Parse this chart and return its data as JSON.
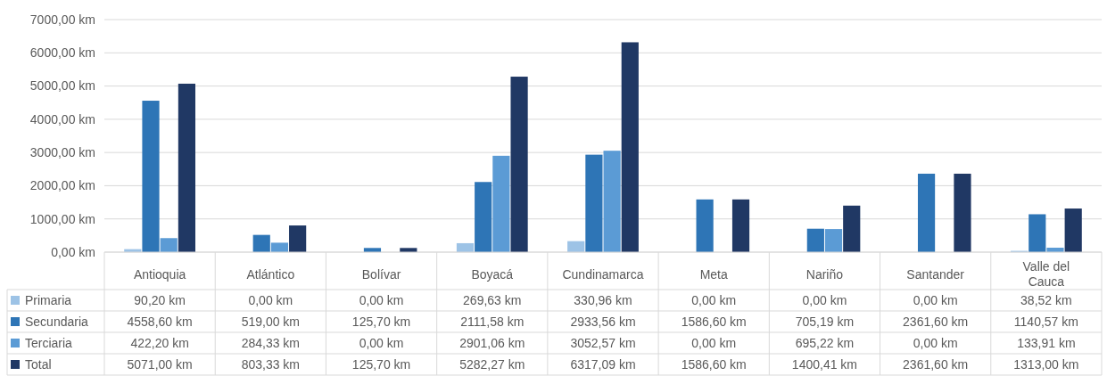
{
  "chart_data": {
    "type": "bar",
    "categories": [
      "Antioquia",
      "Atlántico",
      "Bolívar",
      "Boyacá",
      "Cundinamarca",
      "Meta",
      "Nariño",
      "Santander",
      "Valle del Cauca"
    ],
    "series": [
      {
        "name": "Primaria",
        "color": "#9dc3e6",
        "values": [
          90.2,
          0,
          0,
          269.63,
          330.96,
          0,
          0,
          0,
          38.52
        ],
        "value_labels": [
          "90,20 km",
          "0,00 km",
          "0,00 km",
          "269,63 km",
          "330,96 km",
          "0,00 km",
          "0,00 km",
          "0,00 km",
          "38,52 km"
        ]
      },
      {
        "name": "Secundaria",
        "color": "#2e75b6",
        "values": [
          4558.6,
          519,
          125.7,
          2111.58,
          2933.56,
          1586.6,
          705.19,
          2361.6,
          1140.57
        ],
        "value_labels": [
          "4558,60 km",
          "519,00 km",
          "125,70 km",
          "2111,58 km",
          "2933,56 km",
          "1586,60 km",
          "705,19 km",
          "2361,60 km",
          "1140,57 km"
        ]
      },
      {
        "name": "Terciaria",
        "color": "#5b9bd5",
        "values": [
          422.2,
          284.33,
          0,
          2901.06,
          3052.57,
          0,
          695.22,
          0,
          133.91
        ],
        "value_labels": [
          "422,20 km",
          "284,33 km",
          "0,00 km",
          "2901,06 km",
          "3052,57 km",
          "0,00 km",
          "695,22 km",
          "0,00 km",
          "133,91 km"
        ]
      },
      {
        "name": "Total",
        "color": "#203864",
        "values": [
          5071,
          803.33,
          125.7,
          5282.27,
          6317.09,
          1586.6,
          1400.41,
          2361.6,
          1313
        ],
        "value_labels": [
          "5071,00 km",
          "803,33 km",
          "125,70 km",
          "5282,27 km",
          "6317,09 km",
          "1586,60 km",
          "1400,41 km",
          "2361,60 km",
          "1313,00 km"
        ]
      }
    ],
    "ylim": [
      0,
      7000
    ],
    "yticks": [
      {
        "value": 0,
        "label": "0,00 km"
      },
      {
        "value": 1000,
        "label": "1000,00 km"
      },
      {
        "value": 2000,
        "label": "2000,00 km"
      },
      {
        "value": 3000,
        "label": "3000,00 km"
      },
      {
        "value": 4000,
        "label": "4000,00 km"
      },
      {
        "value": 5000,
        "label": "5000,00 km"
      },
      {
        "value": 6000,
        "label": "6000,00 km"
      },
      {
        "value": 7000,
        "label": "7000,00 km"
      }
    ],
    "grid": "y",
    "legend": "bottom left"
  }
}
